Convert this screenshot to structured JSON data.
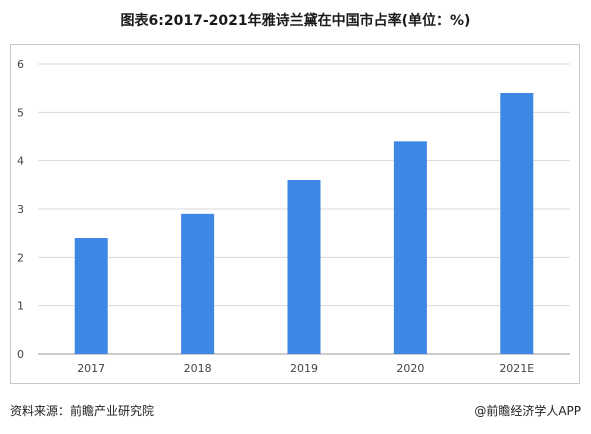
{
  "title": "图表6:2017-2021年雅诗兰黛在中国市占率(单位：%)",
  "footer": {
    "source": "资料来源：前瞻产业研究院",
    "credit": "@前瞻经济学人APP"
  },
  "colors": {
    "bar": "#3f87e5",
    "grid": "#d9d9d9",
    "axis": "#9a9a9a"
  },
  "chart_data": {
    "type": "bar",
    "categories": [
      "2017",
      "2018",
      "2019",
      "2020",
      "2021E"
    ],
    "values": [
      2.4,
      2.9,
      3.6,
      4.4,
      5.4
    ],
    "title": "图表6:2017-2021年雅诗兰黛在中国市占率(单位：%)",
    "xlabel": "",
    "ylabel": "",
    "ylim": [
      0,
      6
    ],
    "yticks": [
      0,
      1,
      2,
      3,
      4,
      5,
      6
    ],
    "grid": true,
    "legend": "none"
  }
}
